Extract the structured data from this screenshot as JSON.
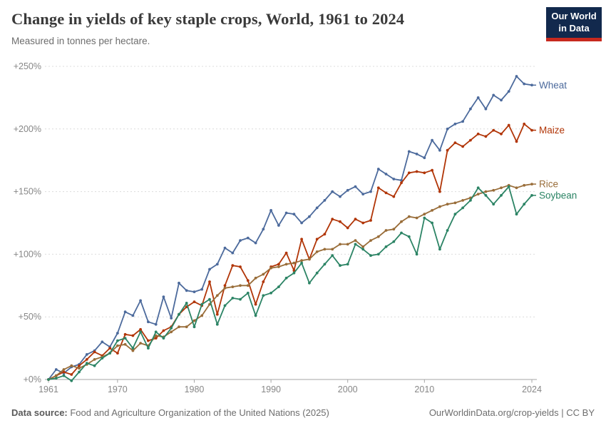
{
  "header": {
    "title": "Change in yields of key staple crops, World, 1961 to 2024",
    "subtitle": "Measured in tonnes per hectare.",
    "logo": {
      "line1": "Our World",
      "line2": "in Data",
      "bg_color": "#12294D",
      "stripe_color": "#C7291E"
    }
  },
  "chart_data": {
    "type": "line",
    "title": "Change in yields of key staple crops, World, 1961 to 2024",
    "subtitle": "Measured in tonnes per hectare.",
    "unit": "% change relative to 1961",
    "grid": "horizontal dashed",
    "legend_position": "right-of-line-end",
    "xlim": [
      1961,
      2024
    ],
    "ylim": [
      0,
      250
    ],
    "y_ticks": [
      0,
      50,
      100,
      150,
      200,
      250
    ],
    "y_tick_labels": [
      "+0%",
      "+50%",
      "+100%",
      "+150%",
      "+200%",
      "+250%"
    ],
    "x_tick_years": [
      1961,
      1970,
      1980,
      1990,
      2000,
      2010,
      2024
    ],
    "x_tick_labels": [
      "1961",
      "1970",
      "1980",
      "1990",
      "2000",
      "2010",
      "2024"
    ],
    "x": [
      1961,
      1962,
      1963,
      1964,
      1965,
      1966,
      1967,
      1968,
      1969,
      1970,
      1971,
      1972,
      1973,
      1974,
      1975,
      1976,
      1977,
      1978,
      1979,
      1980,
      1981,
      1982,
      1983,
      1984,
      1985,
      1986,
      1987,
      1988,
      1989,
      1990,
      1991,
      1992,
      1993,
      1994,
      1995,
      1996,
      1997,
      1998,
      1999,
      2000,
      2001,
      2002,
      2003,
      2004,
      2005,
      2006,
      2007,
      2008,
      2009,
      2010,
      2011,
      2012,
      2013,
      2014,
      2015,
      2016,
      2017,
      2018,
      2019,
      2020,
      2021,
      2022,
      2023,
      2024
    ],
    "series": [
      {
        "name": "Wheat",
        "color": "#4C6A9C",
        "values": [
          0,
          8,
          5,
          10,
          12,
          20,
          23,
          30,
          26,
          37,
          54,
          51,
          63,
          46,
          44,
          66,
          49,
          77,
          71,
          70,
          72,
          88,
          92,
          105,
          101,
          111,
          113,
          109,
          120,
          135,
          123,
          133,
          132,
          125,
          130,
          137,
          143,
          150,
          146,
          151,
          154,
          148,
          150,
          168,
          164,
          160,
          159,
          182,
          180,
          177,
          191,
          183,
          200,
          204,
          206,
          216,
          225,
          216,
          227,
          223,
          230,
          242,
          236,
          235
        ]
      },
      {
        "name": "Maize",
        "color": "#B13507",
        "values": [
          0,
          3,
          6,
          4,
          11,
          16,
          22,
          19,
          25,
          21,
          36,
          35,
          40,
          31,
          33,
          39,
          42,
          52,
          58,
          62,
          59,
          78,
          52,
          75,
          91,
          90,
          79,
          60,
          78,
          90,
          92,
          101,
          87,
          112,
          96,
          112,
          116,
          128,
          126,
          121,
          128,
          125,
          127,
          153,
          149,
          146,
          157,
          165,
          166,
          165,
          167,
          150,
          183,
          189,
          186,
          191,
          196,
          194,
          199,
          196,
          203,
          190,
          204,
          199
        ]
      },
      {
        "name": "Rice",
        "color": "#996D39",
        "values": [
          0,
          3,
          8,
          11,
          9,
          12,
          16,
          18,
          21,
          27,
          28,
          23,
          29,
          27,
          35,
          34,
          38,
          42,
          42,
          47,
          51,
          60,
          67,
          73,
          74,
          75,
          75,
          81,
          84,
          89,
          90,
          92,
          93,
          95,
          96,
          102,
          104,
          104,
          108,
          108,
          111,
          106,
          111,
          114,
          119,
          120,
          126,
          130,
          129,
          132,
          135,
          138,
          140,
          141,
          143,
          145,
          148,
          150,
          151,
          153,
          155,
          153,
          155,
          156
        ]
      },
      {
        "name": "Soybean",
        "color": "#2C8465",
        "values": [
          0,
          1,
          3,
          -1,
          6,
          13,
          11,
          17,
          21,
          31,
          33,
          25,
          38,
          25,
          38,
          33,
          41,
          52,
          61,
          42,
          60,
          64,
          44,
          59,
          65,
          64,
          69,
          51,
          67,
          69,
          74,
          81,
          85,
          93,
          77,
          85,
          92,
          99,
          91,
          92,
          108,
          104,
          99,
          100,
          106,
          110,
          117,
          114,
          100,
          129,
          125,
          104,
          119,
          132,
          137,
          143,
          153,
          147,
          140,
          147,
          154,
          132,
          140,
          147
        ]
      }
    ]
  },
  "footer": {
    "source_label": "Data source:",
    "source_text": " Food and Agriculture Organization of the United Nations (2025)",
    "link_text": "OurWorldinData.org/crop-yields",
    "separator": " | ",
    "license_text": "CC BY"
  },
  "colors": {
    "grid": "#dcdcdc",
    "axis": "#a5a5a5",
    "tick_label": "#878787"
  }
}
